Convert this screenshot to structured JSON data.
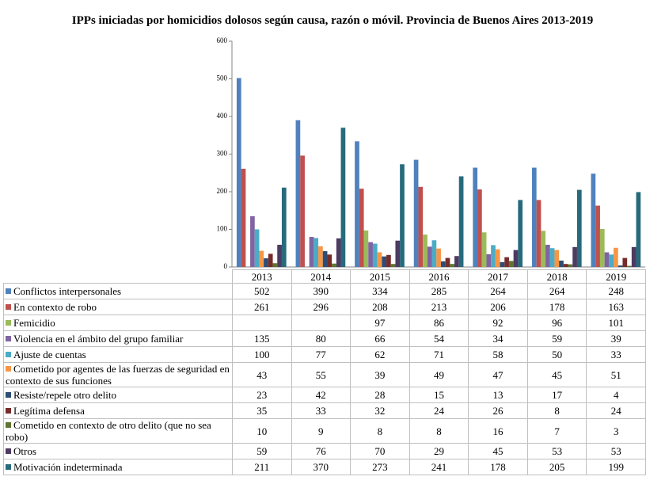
{
  "chart_data": {
    "type": "bar",
    "title": "IPPs iniciadas por homicidios dolosos según causa, razón o móvil. Provincia de Buenos Aires 2013-2019",
    "categories": [
      "2013",
      "2014",
      "2015",
      "2016",
      "2017",
      "2018",
      "2019"
    ],
    "ylim": [
      0,
      600
    ],
    "yticks": [
      0,
      100,
      200,
      300,
      400,
      500,
      600
    ],
    "grid": false,
    "data_table": true,
    "series": [
      {
        "name": "Conflictos interpersonales",
        "color": "#4f81bd",
        "values": [
          502,
          390,
          334,
          285,
          264,
          264,
          248
        ]
      },
      {
        "name": "En contexto de robo",
        "color": "#c0504d",
        "values": [
          261,
          296,
          208,
          213,
          206,
          178,
          163
        ]
      },
      {
        "name": "Femicidio",
        "color": "#9bbb59",
        "values": [
          null,
          null,
          97,
          86,
          92,
          96,
          101
        ]
      },
      {
        "name": "Violencia en el ámbito del grupo familiar",
        "color": "#8064a2",
        "values": [
          135,
          80,
          66,
          54,
          34,
          59,
          39
        ]
      },
      {
        "name": "Ajuste de cuentas",
        "color": "#4bacc6",
        "values": [
          100,
          77,
          62,
          71,
          58,
          50,
          33
        ]
      },
      {
        "name": "Cometido por agentes de las fuerzas de seguridad en contexto de sus funciones",
        "color": "#f79646",
        "values": [
          43,
          55,
          39,
          49,
          47,
          45,
          51
        ]
      },
      {
        "name": "Resiste/repele otro delito",
        "color": "#2c4d75",
        "values": [
          23,
          42,
          28,
          15,
          13,
          17,
          4
        ]
      },
      {
        "name": "Legítima defensa",
        "color": "#772c2a",
        "values": [
          35,
          33,
          32,
          24,
          26,
          8,
          24
        ]
      },
      {
        "name": "Cometido en contexto de otro delito (que no sea robo)",
        "color": "#5f7530",
        "values": [
          10,
          9,
          8,
          8,
          16,
          7,
          3
        ]
      },
      {
        "name": "Otros",
        "color": "#4d3b62",
        "values": [
          59,
          76,
          70,
          29,
          45,
          53,
          53
        ]
      },
      {
        "name": "Motivación indeterminada",
        "color": "#276a7c",
        "values": [
          211,
          370,
          273,
          241,
          178,
          205,
          199
        ]
      }
    ]
  }
}
